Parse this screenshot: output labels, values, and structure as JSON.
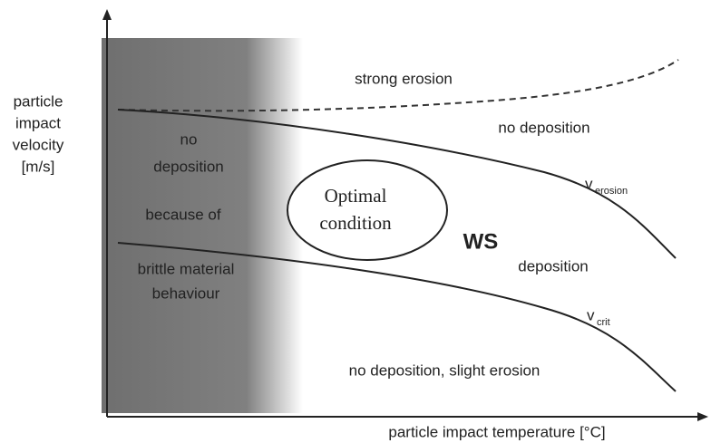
{
  "y_axis_label": [
    "particle",
    "impact",
    "velocity",
    "[m/s]"
  ],
  "x_axis_label": "particle impact temperature [°C]",
  "regions": {
    "top": "strong erosion",
    "upper_right": "no deposition",
    "left": [
      "no",
      "deposition",
      "because of",
      "brittle material",
      "behaviour"
    ],
    "window": "WS",
    "window_right": "deposition",
    "bottom": "no deposition, slight erosion"
  },
  "optimal": [
    "Optimal",
    "condition"
  ],
  "curves": {
    "erosion": {
      "symbol": "v",
      "subscript": "erosion"
    },
    "crit": {
      "symbol": "v",
      "subscript": "crit"
    }
  }
}
